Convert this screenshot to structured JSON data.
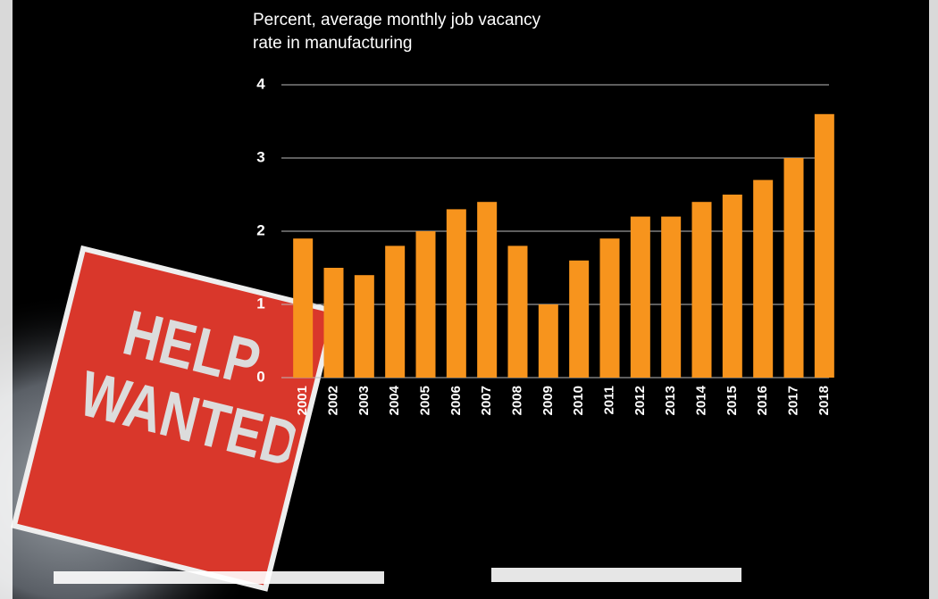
{
  "sign": "HELP WANTED",
  "chart_data": {
    "type": "bar",
    "title": "Percent, average monthly job vacancy rate in manufacturing",
    "categories": [
      "2001",
      "2002",
      "2003",
      "2004",
      "2005",
      "2006",
      "2007",
      "2008",
      "2009",
      "2010",
      "2011",
      "2012",
      "2013",
      "2014",
      "2015",
      "2016",
      "2017",
      "2018"
    ],
    "values": [
      1.9,
      1.5,
      1.4,
      1.8,
      2.0,
      2.3,
      2.4,
      1.8,
      1.0,
      1.6,
      1.9,
      2.2,
      2.2,
      2.4,
      2.5,
      2.7,
      3.0,
      3.6
    ],
    "color": "#f7941d",
    "ylim": [
      0,
      4
    ],
    "yticks": [
      0,
      1,
      2,
      3,
      4
    ],
    "grid": true
  }
}
